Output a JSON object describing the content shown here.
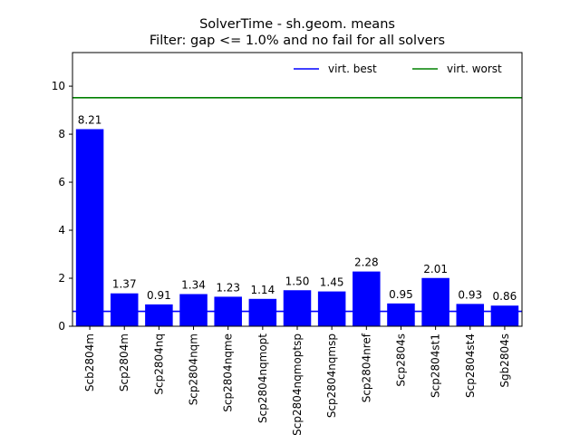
{
  "chart_data": {
    "type": "bar",
    "title_lines": [
      "SolverTime - sh.geom. means",
      "Filter: gap <= 1.0% and no fail for all solvers"
    ],
    "xlabel": "",
    "ylabel": "",
    "categories": [
      "Scb2804m",
      "Scp2804m",
      "Scp2804nq",
      "Scp2804nqm",
      "Scp2804nqme",
      "Scp2804nqmopt",
      "Scp2804nqmoptsp",
      "Scp2804nqmsp",
      "Scp2804nref",
      "Scp2804s",
      "Scp2804st1",
      "Scp2804st4",
      "Sgb2804s"
    ],
    "values": [
      8.21,
      1.37,
      0.91,
      1.34,
      1.23,
      1.14,
      1.5,
      1.45,
      2.28,
      0.95,
      2.01,
      0.93,
      0.86
    ],
    "value_labels": [
      "8.21",
      "1.37",
      "0.91",
      "1.34",
      "1.23",
      "1.14",
      "1.50",
      "1.45",
      "2.28",
      "0.95",
      "2.01",
      "0.93",
      "0.86"
    ],
    "ylim": [
      0,
      11.4
    ],
    "yticks": [
      0,
      2,
      4,
      6,
      8,
      10
    ],
    "ytick_labels": [
      "0",
      "2",
      "4",
      "6",
      "8",
      "10"
    ],
    "grid": false,
    "bar_color": "#0000ff",
    "reference_lines": [
      {
        "name": "virt. best",
        "value": 0.62,
        "color": "#0000ff"
      },
      {
        "name": "virt. worst",
        "value": 9.52,
        "color": "#008000"
      }
    ],
    "legend": {
      "position": "top-right",
      "frameless": true
    }
  }
}
